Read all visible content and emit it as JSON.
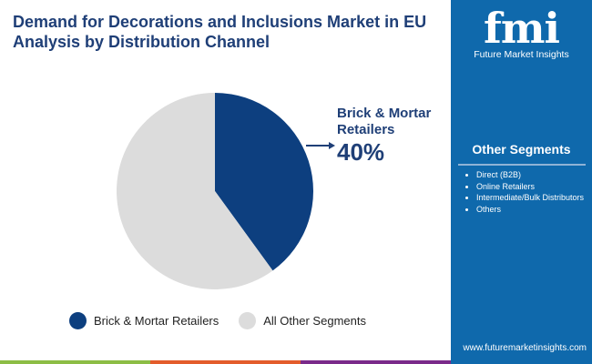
{
  "title_lines": [
    "Demand for Decorations and Inclusions Market in EU",
    "Analysis by Distribution Channel"
  ],
  "logo": {
    "letters": "fmi",
    "name": "Future Market Insights"
  },
  "sidebar": {
    "heading": "Other Segments",
    "items": [
      "Direct (B2B)",
      "Online Retailers",
      "Intermediate/Bulk Distributors",
      "Others"
    ],
    "url": "www.futuremarketinsights.com"
  },
  "colors": {
    "accent": "#0f69ac",
    "dark": "#0d3f7f",
    "light": "#dcdcdc",
    "bars": [
      "#8cbd45",
      "#e35c2b",
      "#7a2a8a"
    ]
  },
  "chart_data": {
    "type": "pie",
    "slices": [
      {
        "name": "Brick & Mortar Retailers",
        "value": 40,
        "color": "#0d3f7f"
      },
      {
        "name": "All Other Segments",
        "value": 60,
        "color": "#dcdcdc"
      }
    ],
    "annotation": {
      "label": "Brick & Mortar Retailers",
      "label_lines": [
        "Brick & Mortar",
        "Retailers"
      ],
      "value": "40%"
    },
    "legend": "bottom"
  }
}
